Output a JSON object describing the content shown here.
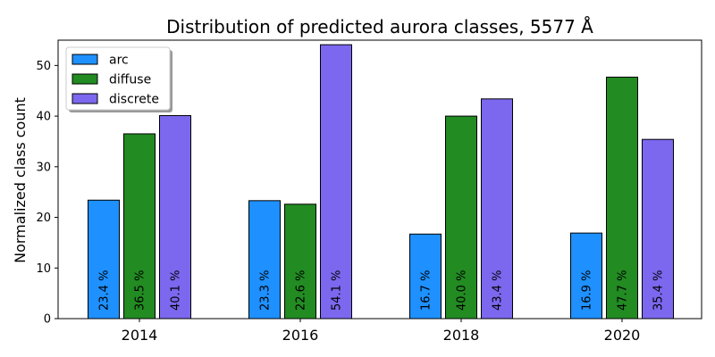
{
  "chart_data": {
    "type": "bar",
    "title": "Distribution of predicted aurora classes, 5577 Å",
    "xlabel": "",
    "ylabel": "Normalized class count",
    "categories": [
      "2014",
      "2016",
      "2018",
      "2020"
    ],
    "ylim": [
      0,
      55
    ],
    "yticks": [
      0,
      10,
      20,
      30,
      40,
      50
    ],
    "grid": false,
    "legend_position": "top-left",
    "series": [
      {
        "name": "arc",
        "color": "#1e90ff",
        "values": [
          23.4,
          23.3,
          16.7,
          16.9
        ],
        "labels": [
          "23.4 %",
          "23.3 %",
          "16.7 %",
          "16.9 %"
        ]
      },
      {
        "name": "diffuse",
        "color": "#228b22",
        "values": [
          36.5,
          22.6,
          40.0,
          47.7
        ],
        "labels": [
          "36.5 %",
          "22.6 %",
          "40.0 %",
          "47.7 %"
        ]
      },
      {
        "name": "discrete",
        "color": "#7b68ee",
        "values": [
          40.1,
          54.1,
          43.4,
          35.4
        ],
        "labels": [
          "40.1 %",
          "54.1 %",
          "43.4 %",
          "35.4 %"
        ]
      }
    ]
  }
}
